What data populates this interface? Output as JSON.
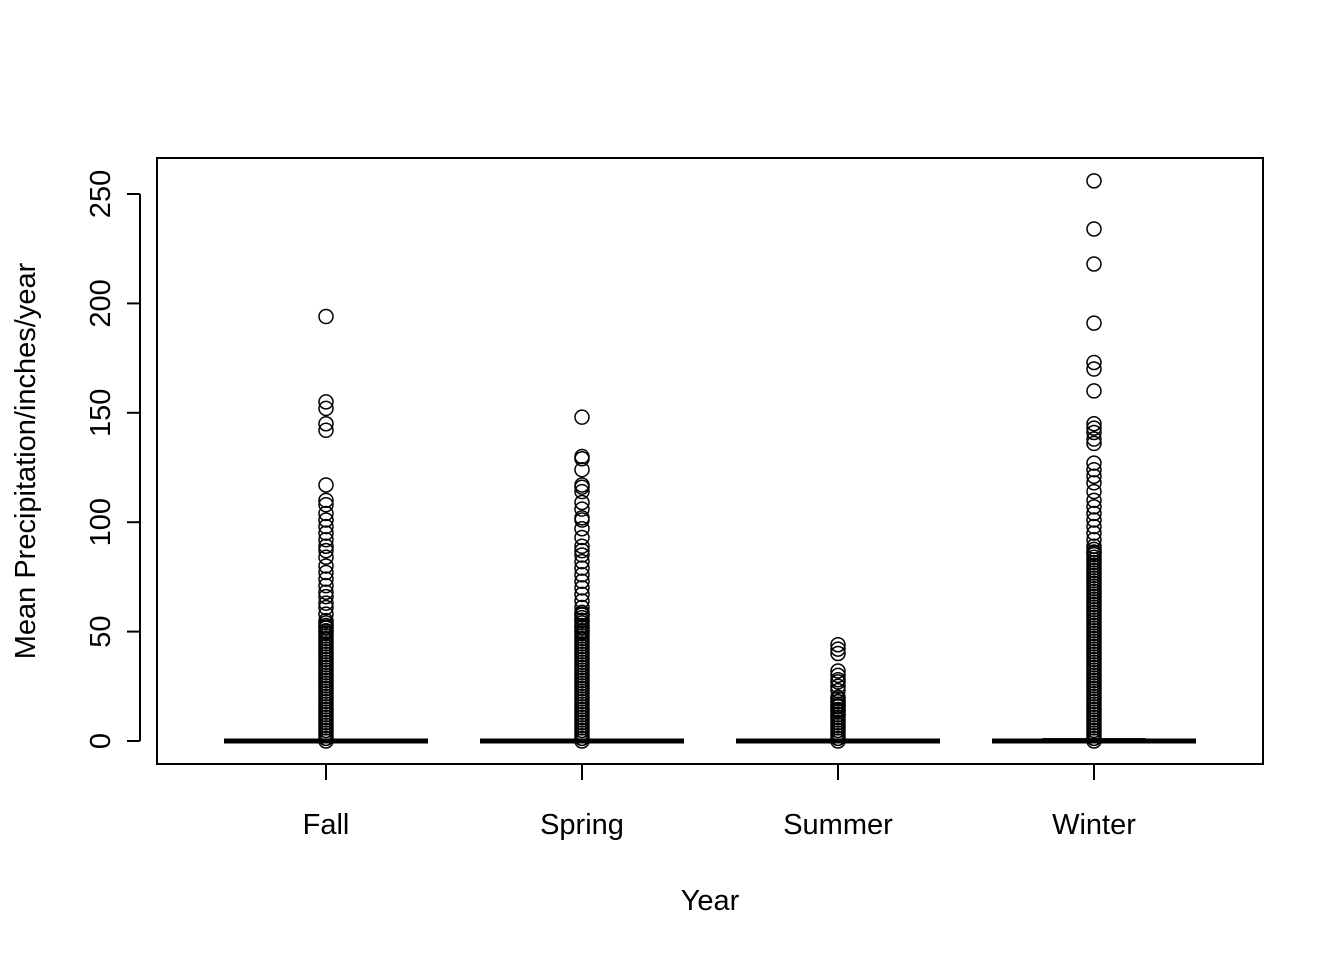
{
  "chart_data": {
    "type": "boxplot",
    "title": "",
    "xlabel": "Year",
    "ylabel": "Mean Precipitation/inches/year",
    "ylim": [
      -10,
      260
    ],
    "yticks": [
      0,
      50,
      100,
      150,
      200,
      250
    ],
    "grid": false,
    "legend": "none",
    "categories": [
      "Fall",
      "Spring",
      "Summer",
      "Winter"
    ],
    "boxes": [
      {
        "name": "Fall",
        "min": 0,
        "q1": 0,
        "median": 0,
        "q3": 0,
        "max": 0,
        "outliers": [
          194,
          155,
          152,
          145,
          142,
          117,
          110,
          108,
          104,
          101,
          98,
          95,
          92,
          89,
          87,
          84,
          80,
          77,
          74,
          71,
          68,
          66,
          63,
          61,
          58,
          55,
          52,
          50
        ]
      },
      {
        "name": "Spring",
        "min": 0,
        "q1": 0,
        "median": 0,
        "q3": 0,
        "max": 0,
        "outliers": [
          148,
          130,
          129,
          124,
          117,
          116,
          114,
          109,
          106,
          102,
          101,
          97,
          93,
          89,
          87,
          85,
          82,
          79,
          76,
          73,
          70,
          67,
          64,
          61,
          58,
          55,
          52,
          50
        ]
      },
      {
        "name": "Summer",
        "min": 0,
        "q1": 0,
        "median": 0,
        "q3": 0,
        "max": 0,
        "outliers": [
          44,
          42,
          40,
          32,
          30,
          28,
          27,
          25,
          23,
          20,
          18,
          16,
          14,
          12
        ]
      },
      {
        "name": "Winter",
        "min": 0,
        "q1": 0,
        "median": 0,
        "q3": 1,
        "max": 2,
        "outliers": [
          256,
          234,
          218,
          191,
          173,
          170,
          160,
          145,
          143,
          141,
          138,
          136,
          127,
          124,
          121,
          118,
          114,
          110,
          107,
          104,
          101,
          98,
          95,
          92,
          89,
          86
        ]
      }
    ],
    "dense_outliers_up_to": [
      55,
      60,
      20,
      88
    ]
  }
}
